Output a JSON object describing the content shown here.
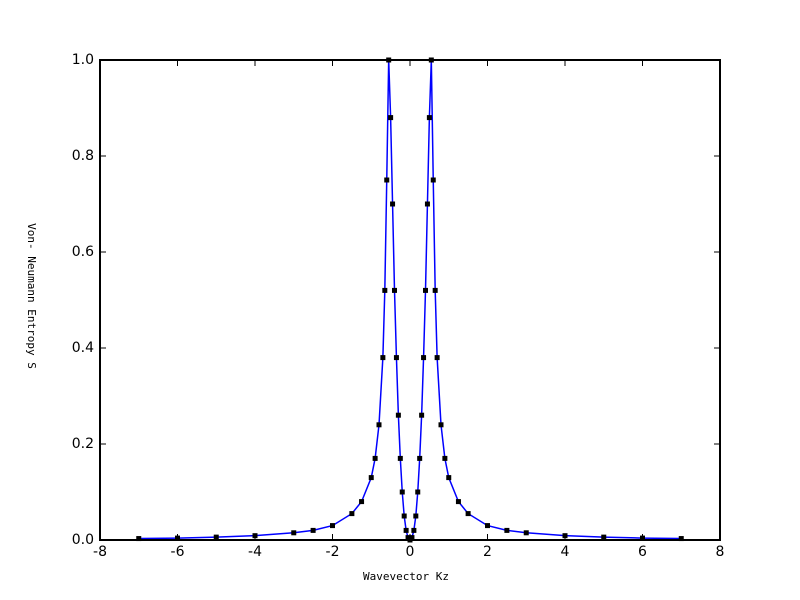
{
  "chart_data": {
    "type": "line",
    "xlabel": "Wavevector Kz",
    "ylabel": "Von- Neumann Entropy S",
    "x": [
      -7,
      -6,
      -5,
      -4,
      -3,
      -2.5,
      -2,
      -1.5,
      -1.25,
      -1,
      -0.9,
      -0.8,
      -0.7,
      -0.65,
      -0.6,
      -0.55,
      -0.5,
      -0.45,
      -0.4,
      -0.35,
      -0.3,
      -0.25,
      -0.2,
      -0.15,
      -0.1,
      -0.05,
      0,
      0.05,
      0.1,
      0.15,
      0.2,
      0.25,
      0.3,
      0.35,
      0.4,
      0.45,
      0.5,
      0.55,
      0.6,
      0.65,
      0.7,
      0.8,
      0.9,
      1,
      1.25,
      1.5,
      2,
      2.5,
      3,
      4,
      5,
      6,
      7
    ],
    "series": [
      {
        "color": "#0000ff",
        "marker_color": "#000000",
        "values": [
          0.003,
          0.004,
          0.006,
          0.009,
          0.015,
          0.02,
          0.03,
          0.055,
          0.08,
          0.13,
          0.17,
          0.24,
          0.38,
          0.52,
          0.75,
          1.0,
          0.88,
          0.7,
          0.52,
          0.38,
          0.26,
          0.17,
          0.1,
          0.05,
          0.02,
          0.005,
          0,
          0.005,
          0.02,
          0.05,
          0.1,
          0.17,
          0.26,
          0.38,
          0.52,
          0.7,
          0.88,
          1.0,
          0.75,
          0.52,
          0.38,
          0.24,
          0.17,
          0.13,
          0.08,
          0.055,
          0.03,
          0.02,
          0.015,
          0.009,
          0.006,
          0.004,
          0.003
        ]
      }
    ],
    "xlim": [
      -8,
      8
    ],
    "xticks": [
      -8,
      -6,
      -4,
      -2,
      0,
      2,
      4,
      6,
      8
    ],
    "ylim": [
      0,
      1
    ],
    "yticks": [
      {
        "value": 0,
        "label": "0.0"
      },
      0.2,
      0.4,
      0.6,
      0.8,
      {
        "value": 1,
        "label": "1.0"
      }
    ],
    "grid": false
  }
}
